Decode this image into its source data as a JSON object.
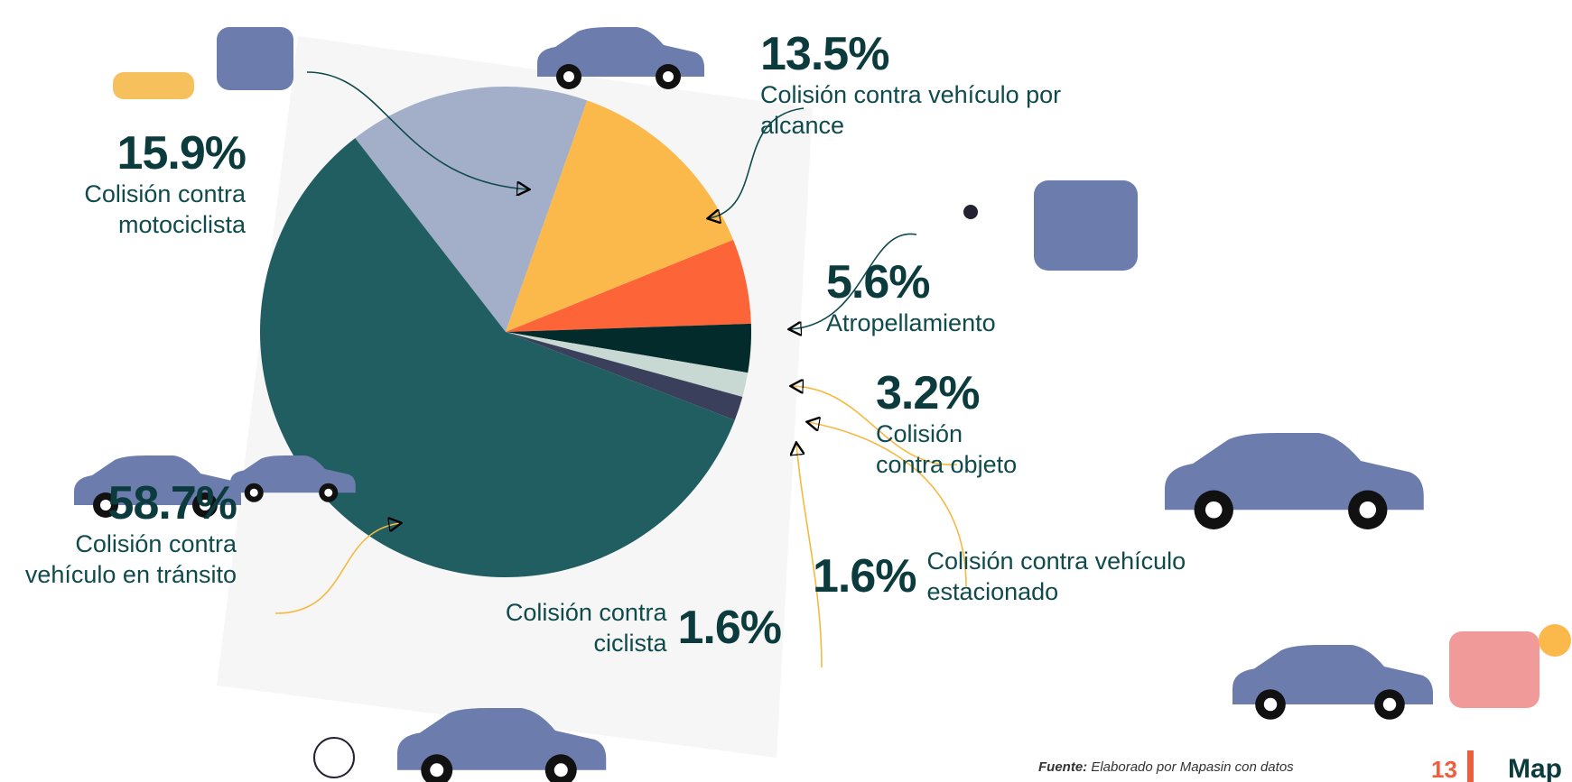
{
  "chart_data": {
    "type": "pie",
    "categories": [
      "Colisión contra motociclista",
      "Colisión contra vehículo por alcance",
      "Atropellamiento",
      "Colisión contra objeto",
      "Colisión contra vehículo estacionado",
      "Colisión contra ciclista",
      "Colisión contra vehículo en tránsito"
    ],
    "values": [
      15.9,
      13.5,
      5.6,
      3.2,
      1.6,
      1.6,
      58.7
    ],
    "value_labels": [
      "15.9%",
      "13.5%",
      "5.6%",
      "3.2%",
      "1.6%",
      "1.6%",
      "58.7%"
    ],
    "colors": [
      "#a3aec9",
      "#fbb94b",
      "#fd6539",
      "#042b2b",
      "#c8d8d2",
      "#3a405b",
      "#215e61"
    ]
  },
  "footer": {
    "source_label": "Fuente:",
    "source": "Elaborado por Mapasin con datos",
    "page_number": "13",
    "brand": "Map"
  }
}
